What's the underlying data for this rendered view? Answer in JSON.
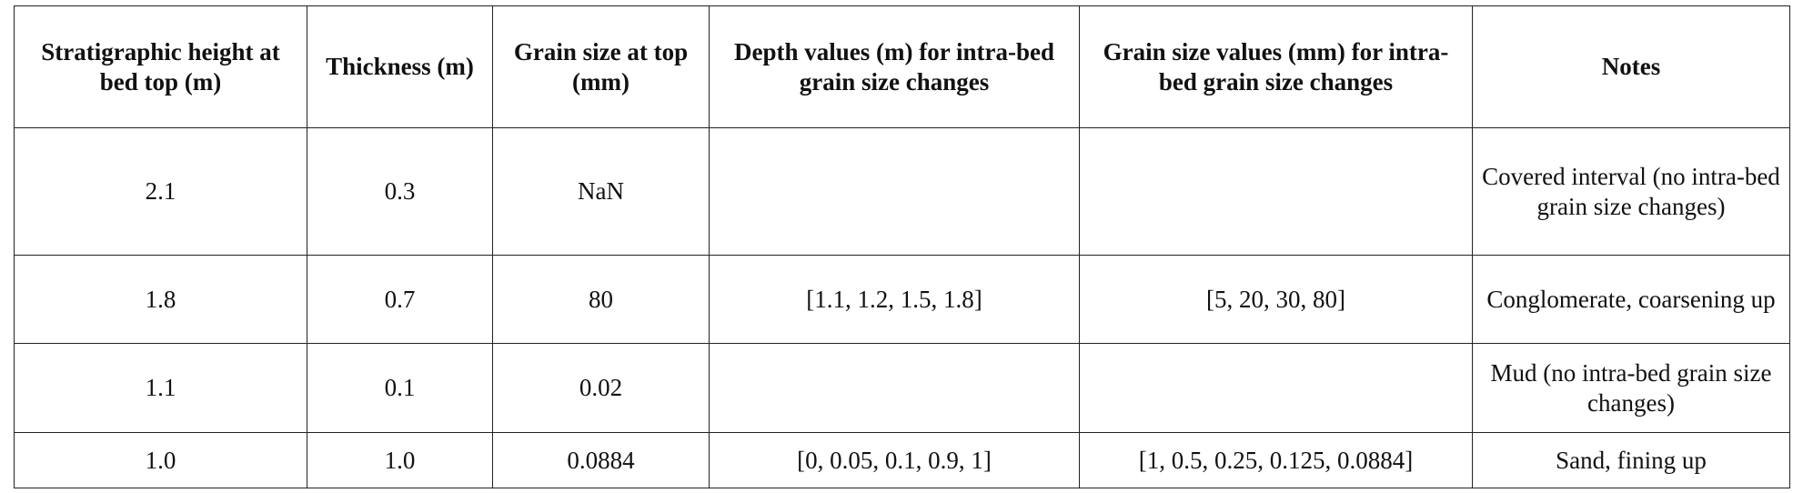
{
  "table": {
    "headers": [
      "Stratigraphic height at bed top (m)",
      "Thickness (m)",
      "Grain size at top (mm)",
      "Depth values (m) for intra-bed grain size changes",
      "Grain size values (mm) for intra-bed grain size changes",
      "Notes"
    ],
    "rows": [
      [
        "2.1",
        "0.3",
        "NaN",
        null,
        null,
        "Covered interval (no intra-bed grain size changes)"
      ],
      [
        "1.8",
        "0.7",
        "80",
        "[1.1, 1.2, 1.5, 1.8]",
        "[5, 20, 30, 80]",
        "Conglomerate, coarsening up"
      ],
      [
        "1.1",
        "0.1",
        "0.02",
        null,
        null,
        "Mud (no intra-bed grain size changes)"
      ],
      [
        "1.0",
        "1.0",
        "0.0884",
        "[0, 0.05, 0.1, 0.9, 1]",
        "[1, 0.5, 0.25, 0.125, 0.0884]",
        "Sand, fining up"
      ]
    ]
  }
}
